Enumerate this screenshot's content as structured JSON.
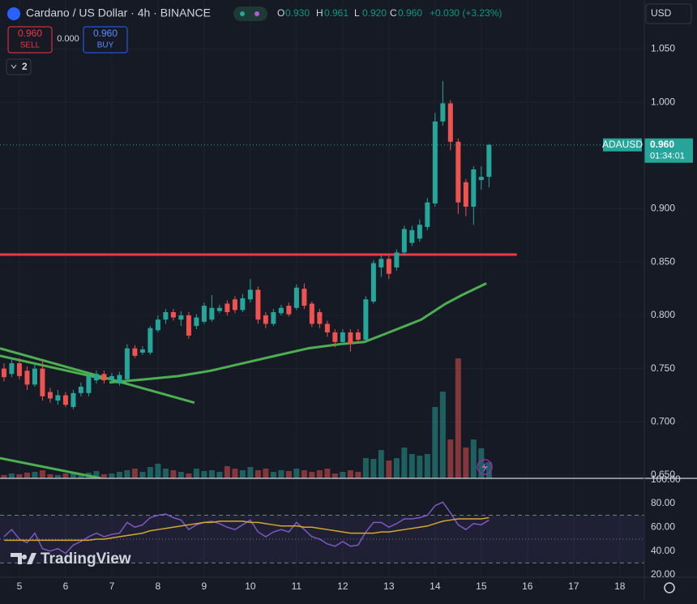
{
  "header": {
    "title": "Cardano / US Dollar · 4h · BINANCE",
    "ohlc": [
      {
        "key": "O",
        "value": "0.930"
      },
      {
        "key": "H",
        "value": "0.961"
      },
      {
        "key": "L",
        "value": "0.920"
      },
      {
        "key": "C",
        "value": "0.960"
      }
    ],
    "change": "+0.030 (+3.23%)",
    "sell": {
      "price": "0.960",
      "label": "SELL"
    },
    "spread": "0.000",
    "buy": {
      "price": "0.960",
      "label": "BUY"
    },
    "indicators_count": "2",
    "currency": "USD",
    "logo": "TradingView"
  },
  "chart_data": {
    "type": "candlestick",
    "up_color": "#26a69a",
    "down_color": "#ef5350",
    "x": [
      4.667,
      4.833,
      5,
      5.167,
      5.333,
      5.5,
      5.667,
      5.833,
      6,
      6.167,
      6.333,
      6.5,
      6.667,
      6.833,
      7,
      7.167,
      7.333,
      7.5,
      7.667,
      7.833,
      8,
      8.167,
      8.333,
      8.5,
      8.667,
      8.833,
      9,
      9.167,
      9.333,
      9.5,
      9.667,
      9.833,
      10,
      10.167,
      10.333,
      10.5,
      10.667,
      10.833,
      11,
      11.167,
      11.333,
      11.5,
      11.667,
      11.833,
      12,
      12.167,
      12.333,
      12.5,
      12.667,
      12.833,
      13,
      13.167,
      13.333,
      13.5,
      13.667,
      13.833,
      14,
      14.167,
      14.333,
      14.5,
      14.667,
      14.833,
      15,
      15.167
    ],
    "open": [
      0.75,
      0.745,
      0.755,
      0.748,
      0.735,
      0.75,
      0.728,
      0.72,
      0.725,
      0.714,
      0.727,
      0.727,
      0.739,
      0.745,
      0.739,
      0.736,
      0.74,
      0.769,
      0.765,
      0.765,
      0.786,
      0.796,
      0.803,
      0.796,
      0.8,
      0.79,
      0.794,
      0.796,
      0.804,
      0.811,
      0.815,
      0.805,
      0.815,
      0.824,
      0.8,
      0.792,
      0.802,
      0.809,
      0.807,
      0.825,
      0.811,
      0.803,
      0.792,
      0.784,
      0.775,
      0.784,
      0.784,
      0.777,
      0.813,
      0.845,
      0.853,
      0.845,
      0.859,
      0.868,
      0.872,
      0.883,
      0.905,
      0.982,
      0.999,
      0.963,
      0.925,
      0.902,
      0.927,
      0.93
    ],
    "high": [
      0.755,
      0.76,
      0.76,
      0.752,
      0.755,
      0.758,
      0.732,
      0.73,
      0.728,
      0.73,
      0.737,
      0.746,
      0.748,
      0.748,
      0.746,
      0.747,
      0.773,
      0.772,
      0.771,
      0.79,
      0.8,
      0.806,
      0.806,
      0.804,
      0.803,
      0.801,
      0.812,
      0.819,
      0.81,
      0.814,
      0.818,
      0.82,
      0.834,
      0.827,
      0.803,
      0.806,
      0.81,
      0.812,
      0.829,
      0.83,
      0.813,
      0.806,
      0.795,
      0.787,
      0.787,
      0.787,
      0.787,
      0.818,
      0.852,
      0.856,
      0.856,
      0.862,
      0.884,
      0.884,
      0.89,
      0.91,
      0.99,
      1.02,
      1.002,
      0.966,
      0.928,
      0.94,
      0.94,
      0.961
    ],
    "low": [
      0.738,
      0.742,
      0.74,
      0.73,
      0.733,
      0.72,
      0.718,
      0.716,
      0.714,
      0.712,
      0.724,
      0.724,
      0.736,
      0.736,
      0.737,
      0.734,
      0.738,
      0.76,
      0.763,
      0.763,
      0.784,
      0.792,
      0.795,
      0.79,
      0.778,
      0.787,
      0.792,
      0.794,
      0.802,
      0.8,
      0.802,
      0.803,
      0.812,
      0.792,
      0.788,
      0.79,
      0.8,
      0.799,
      0.805,
      0.806,
      0.789,
      0.788,
      0.78,
      0.77,
      0.772,
      0.766,
      0.774,
      0.775,
      0.811,
      0.836,
      0.834,
      0.842,
      0.856,
      0.865,
      0.869,
      0.88,
      0.902,
      0.978,
      0.955,
      0.895,
      0.893,
      0.885,
      0.918,
      0.92
    ],
    "close": [
      0.742,
      0.755,
      0.743,
      0.735,
      0.75,
      0.724,
      0.722,
      0.725,
      0.716,
      0.727,
      0.733,
      0.743,
      0.745,
      0.739,
      0.743,
      0.744,
      0.769,
      0.762,
      0.768,
      0.788,
      0.796,
      0.803,
      0.798,
      0.8,
      0.781,
      0.798,
      0.809,
      0.807,
      0.807,
      0.803,
      0.805,
      0.816,
      0.824,
      0.796,
      0.792,
      0.803,
      0.807,
      0.801,
      0.826,
      0.809,
      0.792,
      0.792,
      0.784,
      0.775,
      0.784,
      0.773,
      0.777,
      0.815,
      0.849,
      0.853,
      0.839,
      0.859,
      0.881,
      0.88,
      0.885,
      0.906,
      0.982,
      0.999,
      0.963,
      0.906,
      0.902,
      0.937,
      0.93,
      0.96
    ],
    "xlim": [
      4.58,
      18.53
    ],
    "xticks": [
      5,
      6,
      7,
      8,
      9,
      10,
      11,
      12,
      13,
      14,
      15,
      16,
      17,
      18
    ],
    "ylim": [
      0.647,
      1.096
    ],
    "yticks": [
      {
        "value": 0.65,
        "label": "0.650"
      },
      {
        "value": 0.7,
        "label": "0.700"
      },
      {
        "value": 0.75,
        "label": "0.750"
      },
      {
        "value": 0.8,
        "label": "0.800"
      },
      {
        "value": 0.85,
        "label": "0.850"
      },
      {
        "value": 0.9,
        "label": "0.900"
      },
      {
        "value": 1.0,
        "label": "1.000"
      },
      {
        "value": 1.05,
        "label": "1.050"
      }
    ],
    "grid": true,
    "volume": {
      "vlim": [
        0,
        160
      ],
      "values": [
        4,
        6,
        5,
        7,
        8,
        10,
        5,
        4,
        6,
        8,
        6,
        7,
        9,
        5,
        6,
        8,
        10,
        12,
        8,
        14,
        18,
        12,
        10,
        8,
        6,
        12,
        9,
        10,
        8,
        15,
        12,
        10,
        14,
        10,
        12,
        8,
        10,
        9,
        12,
        10,
        8,
        10,
        12,
        6,
        8,
        10,
        8,
        25,
        24,
        35,
        22,
        25,
        38,
        30,
        28,
        30,
        88,
        107,
        48,
        148,
        38,
        48,
        37,
        20
      ]
    },
    "ma": {
      "color": "#4caf50",
      "x": [
        6.95,
        7.74,
        8.44,
        9.14,
        9.84,
        10.54,
        11.25,
        11.95,
        12.47,
        13.0,
        13.7,
        14.23,
        14.58,
        15.11
      ],
      "values": [
        0.737,
        0.74,
        0.743,
        0.748,
        0.755,
        0.762,
        0.769,
        0.773,
        0.775,
        0.784,
        0.796,
        0.811,
        0.819,
        0.83
      ]
    },
    "drawings": [
      {
        "color": "#4caf50",
        "x": [
          4.58,
          8.79
        ],
        "values": [
          0.769,
          0.718
        ]
      },
      {
        "color": "#4caf50",
        "x": [
          4.58,
          6.86
        ],
        "values": [
          0.762,
          0.74
        ]
      },
      {
        "color": "#4caf50",
        "x": [
          4.58,
          6.77
        ],
        "values": [
          0.666,
          0.647
        ]
      },
      {
        "color": "#f23645",
        "x": [
          4.58,
          15.77
        ],
        "values": [
          0.857,
          0.857
        ]
      }
    ],
    "price_label": {
      "symbol": "ADAUSD",
      "value": 0.96,
      "label": "0.960",
      "countdown": "01:34:01",
      "color": "#26a69a"
    },
    "rsi": {
      "ylim": [
        18,
        100.3
      ],
      "yticks": [
        {
          "value": 20,
          "label": "20.00"
        },
        {
          "value": 40,
          "label": "40.00"
        },
        {
          "value": 60,
          "label": "60.00"
        },
        {
          "value": 80,
          "label": "80.00"
        },
        {
          "value": 100,
          "label": "100.00"
        }
      ],
      "levels": [
        70,
        50,
        30
      ],
      "series": [
        {
          "color": "#7e57c2",
          "values": [
            52,
            58,
            50,
            47,
            55,
            42,
            40,
            42,
            38,
            45,
            48,
            52,
            55,
            52,
            54,
            55,
            64,
            60,
            62,
            68,
            70,
            71,
            68,
            66,
            58,
            62,
            64,
            65,
            63,
            60,
            58,
            62,
            66,
            56,
            52,
            56,
            58,
            56,
            64,
            58,
            52,
            50,
            46,
            44,
            48,
            44,
            45,
            56,
            64,
            64,
            60,
            63,
            67,
            67,
            68,
            70,
            78,
            81,
            72,
            62,
            58,
            63,
            62,
            66
          ]
        },
        {
          "color": "#d4a72c",
          "values": [
            49,
            49,
            49,
            49,
            49,
            49,
            49,
            49,
            49,
            49,
            49,
            49,
            50,
            50,
            51,
            52,
            53,
            54,
            55,
            57,
            58,
            59,
            60,
            61,
            62,
            63,
            64,
            64,
            65,
            65,
            65,
            65,
            64,
            64,
            63,
            62,
            61,
            61,
            61,
            60,
            60,
            59,
            58,
            57,
            56,
            55,
            55,
            55,
            55,
            56,
            56,
            57,
            58,
            59,
            60,
            61,
            63,
            65,
            66,
            67,
            67,
            67,
            67,
            68
          ]
        }
      ]
    }
  }
}
